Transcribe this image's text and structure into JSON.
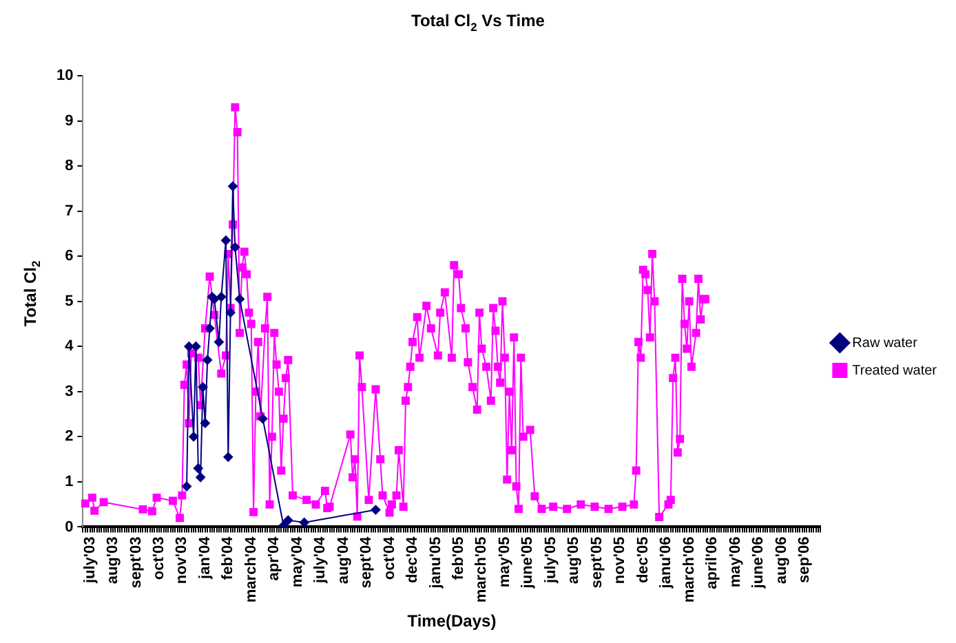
{
  "chart_data": {
    "type": "line",
    "title": "Total Cl$_{2}$ Vs Time",
    "xlabel": "Time(Days)",
    "ylabel": "Total Cl$_{2}$",
    "categories": [
      null,
      null,
      null,
      "july'03",
      null,
      null,
      null,
      null,
      null,
      null,
      null,
      null,
      null,
      "aug'03",
      null,
      null,
      null,
      null,
      null,
      null,
      null,
      null,
      null,
      "sept'03",
      null,
      null,
      null,
      null,
      null,
      null,
      null,
      null,
      null,
      "oct'03",
      null,
      null,
      null,
      null,
      null,
      null,
      null,
      null,
      null,
      "nov'03",
      null,
      null,
      null,
      null,
      null,
      null,
      null,
      null,
      null,
      "jan'04",
      null,
      null,
      null,
      null,
      null,
      null,
      null,
      null,
      null,
      "feb'04",
      null,
      null,
      null,
      null,
      null,
      null,
      null,
      null,
      null,
      "march'04",
      null,
      null,
      null,
      null,
      null,
      null,
      null,
      null,
      null,
      "apr'04",
      null,
      null,
      null,
      null,
      null,
      null,
      null,
      null,
      null,
      "may'04",
      null,
      null,
      null,
      null,
      null,
      null,
      null,
      null,
      null,
      "july'04",
      null,
      null,
      null,
      null,
      null,
      null,
      null,
      null,
      null,
      "aug'04",
      null,
      null,
      null,
      null,
      null,
      null,
      null,
      null,
      null,
      "sept'04",
      null,
      null,
      null,
      null,
      null,
      null,
      null,
      null,
      null,
      "oct'04",
      null,
      null,
      null,
      null,
      null,
      null,
      null,
      null,
      null,
      "dec'04",
      null,
      null,
      null,
      null,
      null,
      null,
      null,
      null,
      null,
      "janu'05",
      null,
      null,
      null,
      null,
      null,
      null,
      null,
      null,
      null,
      "feb'05",
      null,
      null,
      null,
      null,
      null,
      null,
      null,
      null,
      null,
      "march'05",
      null,
      null,
      null,
      null,
      null,
      null,
      null,
      null,
      null,
      "may'05",
      null,
      null,
      null,
      null,
      null,
      null,
      null,
      null,
      null,
      "june'05",
      null,
      null,
      null,
      null,
      null,
      null,
      null,
      null,
      null,
      "july'05",
      null,
      null,
      null,
      null,
      null,
      null,
      null,
      null,
      null,
      "aug'05",
      null,
      null,
      null,
      null,
      null,
      null,
      null,
      null,
      null,
      "sept'05",
      null,
      null,
      null,
      null,
      null,
      null,
      null,
      null,
      null,
      "nov'05",
      null,
      null,
      null,
      null,
      null,
      null,
      null,
      null,
      null,
      "dec'05",
      null,
      null,
      null,
      null,
      null,
      null,
      null,
      null,
      null,
      "janu'06",
      null,
      null,
      null,
      null,
      null,
      null,
      null,
      null,
      null,
      "march'06",
      null,
      null,
      null,
      null,
      null,
      null,
      null,
      null,
      null,
      "april'06",
      null,
      null,
      null,
      null,
      null,
      null,
      null,
      null,
      null,
      "may'06",
      null,
      null,
      null,
      null,
      null,
      null,
      null,
      null,
      null,
      "june'06",
      null,
      null,
      null,
      null,
      null,
      null,
      null,
      null,
      null,
      "aug'06",
      null,
      null,
      null,
      null,
      null,
      null,
      null,
      null,
      null,
      "sep'06",
      null,
      null,
      null,
      null,
      null,
      null,
      null
    ],
    "ylim": [
      0,
      10
    ],
    "yticks": [
      0,
      1,
      2,
      3,
      4,
      5,
      6,
      7,
      8,
      9,
      10
    ],
    "grid": false,
    "legend": "right",
    "line_style": "solid",
    "series": [
      {
        "name": "Raw water",
        "color": "#000080",
        "marker": "diamond",
        "values": [
          null,
          null,
          null,
          null,
          null,
          null,
          null,
          null,
          null,
          null,
          null,
          null,
          null,
          null,
          null,
          null,
          null,
          null,
          null,
          null,
          null,
          null,
          null,
          null,
          null,
          null,
          null,
          null,
          null,
          null,
          null,
          null,
          null,
          null,
          null,
          null,
          null,
          null,
          null,
          null,
          null,
          null,
          null,
          null,
          null,
          0.9,
          4.0,
          null,
          2.0,
          4.0,
          1.3,
          1.1,
          3.1,
          2.3,
          3.7,
          4.4,
          5.1,
          5.05,
          null,
          4.1,
          5.1,
          null,
          6.35,
          1.55,
          4.75,
          7.55,
          6.2,
          null,
          5.05,
          null,
          null,
          null,
          null,
          null,
          null,
          null,
          null,
          null,
          2.4,
          null,
          null,
          null,
          null,
          null,
          null,
          null,
          null,
          0.03,
          null,
          0.15,
          null,
          null,
          null,
          null,
          null,
          null,
          0.1,
          null,
          null,
          null,
          null,
          null,
          null,
          null,
          null,
          null,
          null,
          null,
          null,
          null,
          null,
          null,
          null,
          null,
          null,
          null,
          null,
          null,
          null,
          null,
          null,
          null,
          null,
          null,
          null,
          null,
          null,
          0.38,
          null,
          null,
          null,
          null,
          null,
          null,
          null,
          null,
          null,
          null,
          null,
          null,
          null,
          null,
          null,
          null,
          null,
          null,
          null,
          null,
          null,
          null,
          null,
          null,
          null,
          null,
          null,
          null,
          null,
          null,
          null,
          null,
          null,
          null,
          null,
          null,
          null,
          null,
          null,
          null,
          null,
          null,
          null,
          null,
          null,
          null,
          null,
          null,
          null,
          null,
          null,
          null,
          null,
          null,
          null,
          null,
          null,
          null,
          null,
          null,
          null,
          null,
          null,
          null,
          null,
          null,
          null,
          null,
          null,
          null,
          null,
          null,
          null,
          null,
          null,
          null,
          null,
          null,
          null,
          null,
          null,
          null,
          null,
          null,
          null,
          null,
          null,
          null,
          null,
          null,
          null,
          null,
          null,
          null,
          null,
          null,
          null,
          null,
          null,
          null,
          null,
          null,
          null,
          null,
          null,
          null,
          null,
          null,
          null,
          null,
          null,
          null,
          null,
          null,
          null,
          null,
          null,
          null,
          null,
          null,
          null,
          null,
          null,
          null,
          null,
          null,
          null,
          null,
          null,
          null,
          null,
          null,
          null,
          null,
          null,
          null,
          null,
          null,
          null,
          null,
          null,
          null,
          null,
          null,
          null,
          null,
          null,
          null,
          null,
          null,
          null,
          null,
          null,
          null,
          null,
          null,
          null,
          null,
          null,
          null,
          null,
          null,
          null,
          null,
          null,
          null,
          null,
          null,
          null,
          null,
          null,
          null,
          null,
          null,
          null,
          null,
          null,
          null,
          null,
          null,
          null,
          null,
          null,
          null,
          null,
          null,
          null,
          null,
          null,
          null,
          null,
          null,
          null
        ]
      },
      {
        "name": "Treated water",
        "color": "#ff00ff",
        "marker": "square",
        "values": [
          null,
          0.52,
          null,
          null,
          0.65,
          0.36,
          null,
          null,
          null,
          0.55,
          null,
          null,
          null,
          null,
          null,
          null,
          null,
          null,
          null,
          null,
          null,
          null,
          null,
          null,
          null,
          null,
          0.39,
          null,
          null,
          null,
          0.35,
          null,
          0.65,
          null,
          null,
          null,
          null,
          null,
          null,
          0.58,
          null,
          null,
          0.2,
          0.7,
          3.15,
          3.6,
          2.3,
          3.85,
          null,
          null,
          3.75,
          2.7,
          null,
          4.4,
          null,
          5.55,
          null,
          4.7,
          null,
          null,
          3.4,
          null,
          3.8,
          6.05,
          4.85,
          6.7,
          9.3,
          8.75,
          4.3,
          5.75,
          6.1,
          5.6,
          4.75,
          4.5,
          0.33,
          3.0,
          4.1,
          2.45,
          null,
          4.4,
          5.1,
          0.5,
          2.0,
          4.3,
          3.6,
          3.0,
          1.25,
          2.4,
          3.3,
          3.7,
          null,
          0.7,
          null,
          null,
          null,
          null,
          null,
          0.6,
          null,
          null,
          null,
          0.5,
          null,
          null,
          null,
          0.8,
          0.42,
          0.45,
          null,
          null,
          null,
          null,
          null,
          null,
          null,
          null,
          2.05,
          1.1,
          1.5,
          0.23,
          3.8,
          3.1,
          null,
          null,
          0.6,
          null,
          null,
          3.05,
          null,
          1.5,
          0.7,
          null,
          null,
          0.32,
          0.5,
          null,
          0.7,
          1.7,
          null,
          0.45,
          2.8,
          3.1,
          3.55,
          4.1,
          null,
          4.65,
          3.75,
          null,
          null,
          4.9,
          null,
          4.4,
          null,
          null,
          3.8,
          4.75,
          null,
          5.2,
          null,
          null,
          3.75,
          5.8,
          null,
          5.6,
          4.85,
          null,
          4.4,
          3.65,
          null,
          3.1,
          null,
          2.6,
          4.75,
          3.95,
          null,
          3.55,
          null,
          2.8,
          4.85,
          4.35,
          3.55,
          3.2,
          5.0,
          3.75,
          1.05,
          3.0,
          1.7,
          4.2,
          0.9,
          0.4,
          3.75,
          2.0,
          null,
          null,
          2.15,
          null,
          0.68,
          null,
          null,
          0.4,
          null,
          null,
          null,
          null,
          0.45,
          null,
          null,
          null,
          null,
          null,
          0.4,
          null,
          null,
          null,
          null,
          null,
          0.5,
          null,
          null,
          null,
          null,
          null,
          0.45,
          null,
          null,
          null,
          null,
          null,
          0.4,
          null,
          null,
          null,
          null,
          null,
          0.45,
          null,
          null,
          null,
          null,
          0.5,
          1.25,
          4.1,
          3.75,
          5.7,
          5.6,
          5.25,
          4.2,
          6.05,
          5.0,
          null,
          0.22,
          null,
          null,
          null,
          0.5,
          0.6,
          3.3,
          3.75,
          1.65,
          1.95,
          5.5,
          4.5,
          3.95,
          5.0,
          3.55,
          null,
          4.3,
          5.5,
          4.6,
          5.05,
          5.05,
          null,
          null,
          null,
          null,
          null,
          null,
          null,
          null,
          null,
          null,
          null,
          null,
          null,
          null,
          null,
          null,
          null,
          null,
          null,
          null,
          null,
          null,
          null,
          null,
          null,
          null,
          null,
          null,
          null,
          null,
          null,
          null,
          null,
          null,
          null,
          null,
          null,
          null,
          null,
          null,
          null,
          null,
          null,
          null,
          null,
          null,
          null,
          null,
          null,
          null
        ]
      }
    ]
  }
}
